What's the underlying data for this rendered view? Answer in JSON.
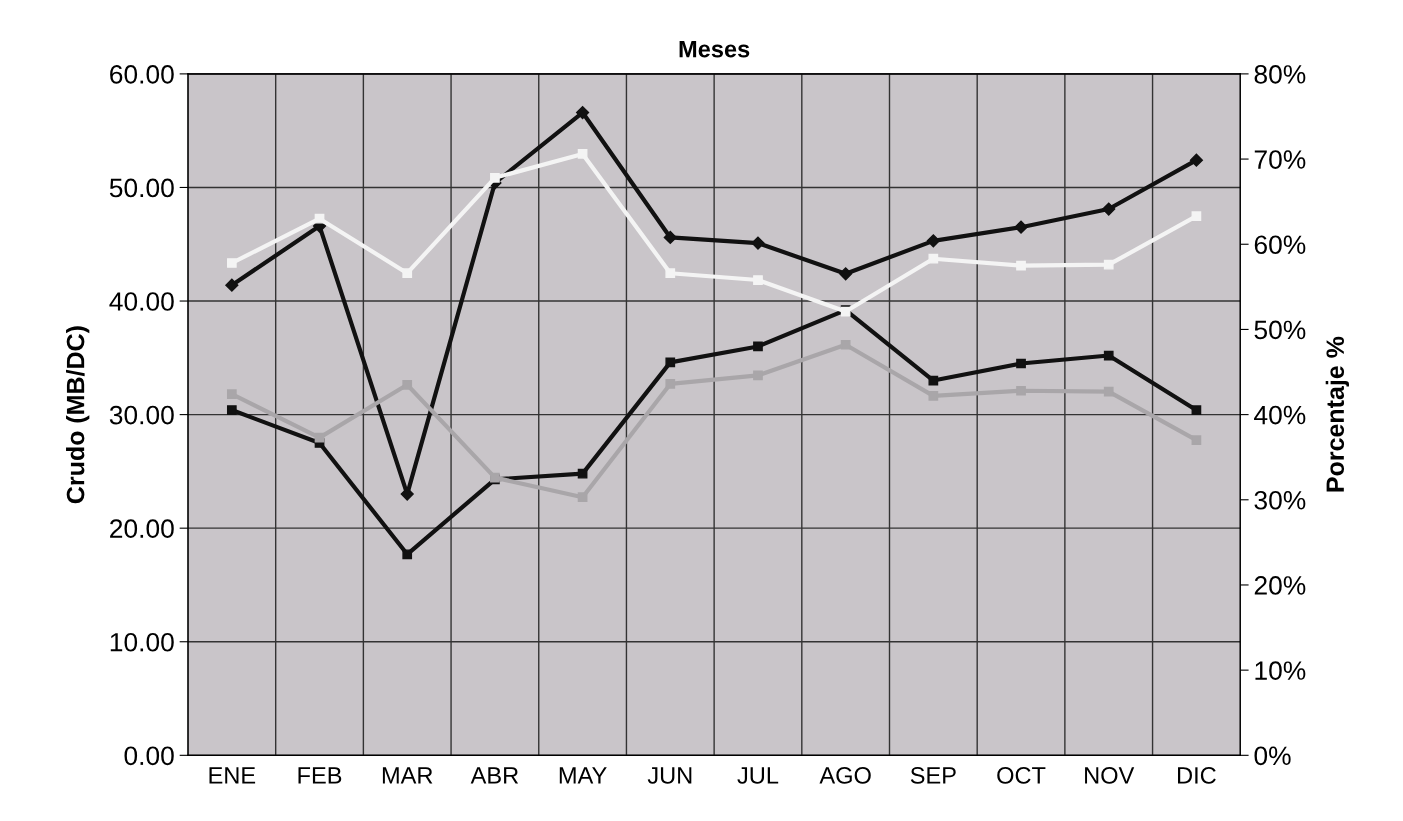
{
  "chart_data": {
    "type": "line",
    "title": "Meses",
    "ylabel": "Crudo (MB/DC)",
    "y2label": "Porcentaje %",
    "categories": [
      "ENE",
      "FEB",
      "MAR",
      "ABR",
      "MAY",
      "JUN",
      "JUL",
      "AGO",
      "SEP",
      "OCT",
      "NOV",
      "DIC"
    ],
    "series": [
      {
        "color": "#111111",
        "marker": "diamond",
        "values": [
          41.4,
          46.6,
          23.0,
          50.4,
          56.6,
          45.6,
          45.1,
          42.4,
          45.3,
          46.5,
          48.1,
          52.4
        ]
      },
      {
        "color": "#111111",
        "marker": "square",
        "values": [
          30.4,
          27.5,
          17.7,
          24.3,
          24.8,
          34.6,
          36.0,
          39.2,
          33.0,
          34.5,
          35.2,
          30.4
        ]
      },
      {
        "color": "#f4f4f4",
        "marker": "square",
        "axis": "y2",
        "values": [
          57.8,
          63.0,
          56.6,
          67.8,
          70.6,
          56.6,
          55.8,
          52.1,
          58.3,
          57.5,
          57.6,
          63.3
        ]
      },
      {
        "color": "#a9a6a9",
        "marker": "square",
        "axis": "y2",
        "values": [
          42.4,
          37.3,
          43.5,
          32.6,
          30.3,
          43.6,
          44.6,
          48.2,
          42.2,
          42.8,
          42.7,
          37.0
        ]
      }
    ],
    "ylim": [
      0,
      60
    ],
    "yticks": [
      {
        "value": 0,
        "label": "0.00"
      },
      {
        "value": 10,
        "label": "10.00"
      },
      {
        "value": 20,
        "label": "20.00"
      },
      {
        "value": 30,
        "label": "30.00"
      },
      {
        "value": 40,
        "label": "40.00"
      },
      {
        "value": 50,
        "label": "50.00"
      },
      {
        "value": 60,
        "label": "60.00"
      }
    ],
    "y2lim": [
      0,
      80
    ],
    "y2ticks": [
      {
        "value": 0,
        "label": "0%"
      },
      {
        "value": 10,
        "label": "10%"
      },
      {
        "value": 20,
        "label": "20%"
      },
      {
        "value": 30,
        "label": "30%"
      },
      {
        "value": 40,
        "label": "40%"
      },
      {
        "value": 50,
        "label": "50%"
      },
      {
        "value": 60,
        "label": "60%"
      },
      {
        "value": 70,
        "label": "70%"
      },
      {
        "value": 80,
        "label": "80%"
      }
    ],
    "grid": true,
    "line_style": "solid"
  }
}
